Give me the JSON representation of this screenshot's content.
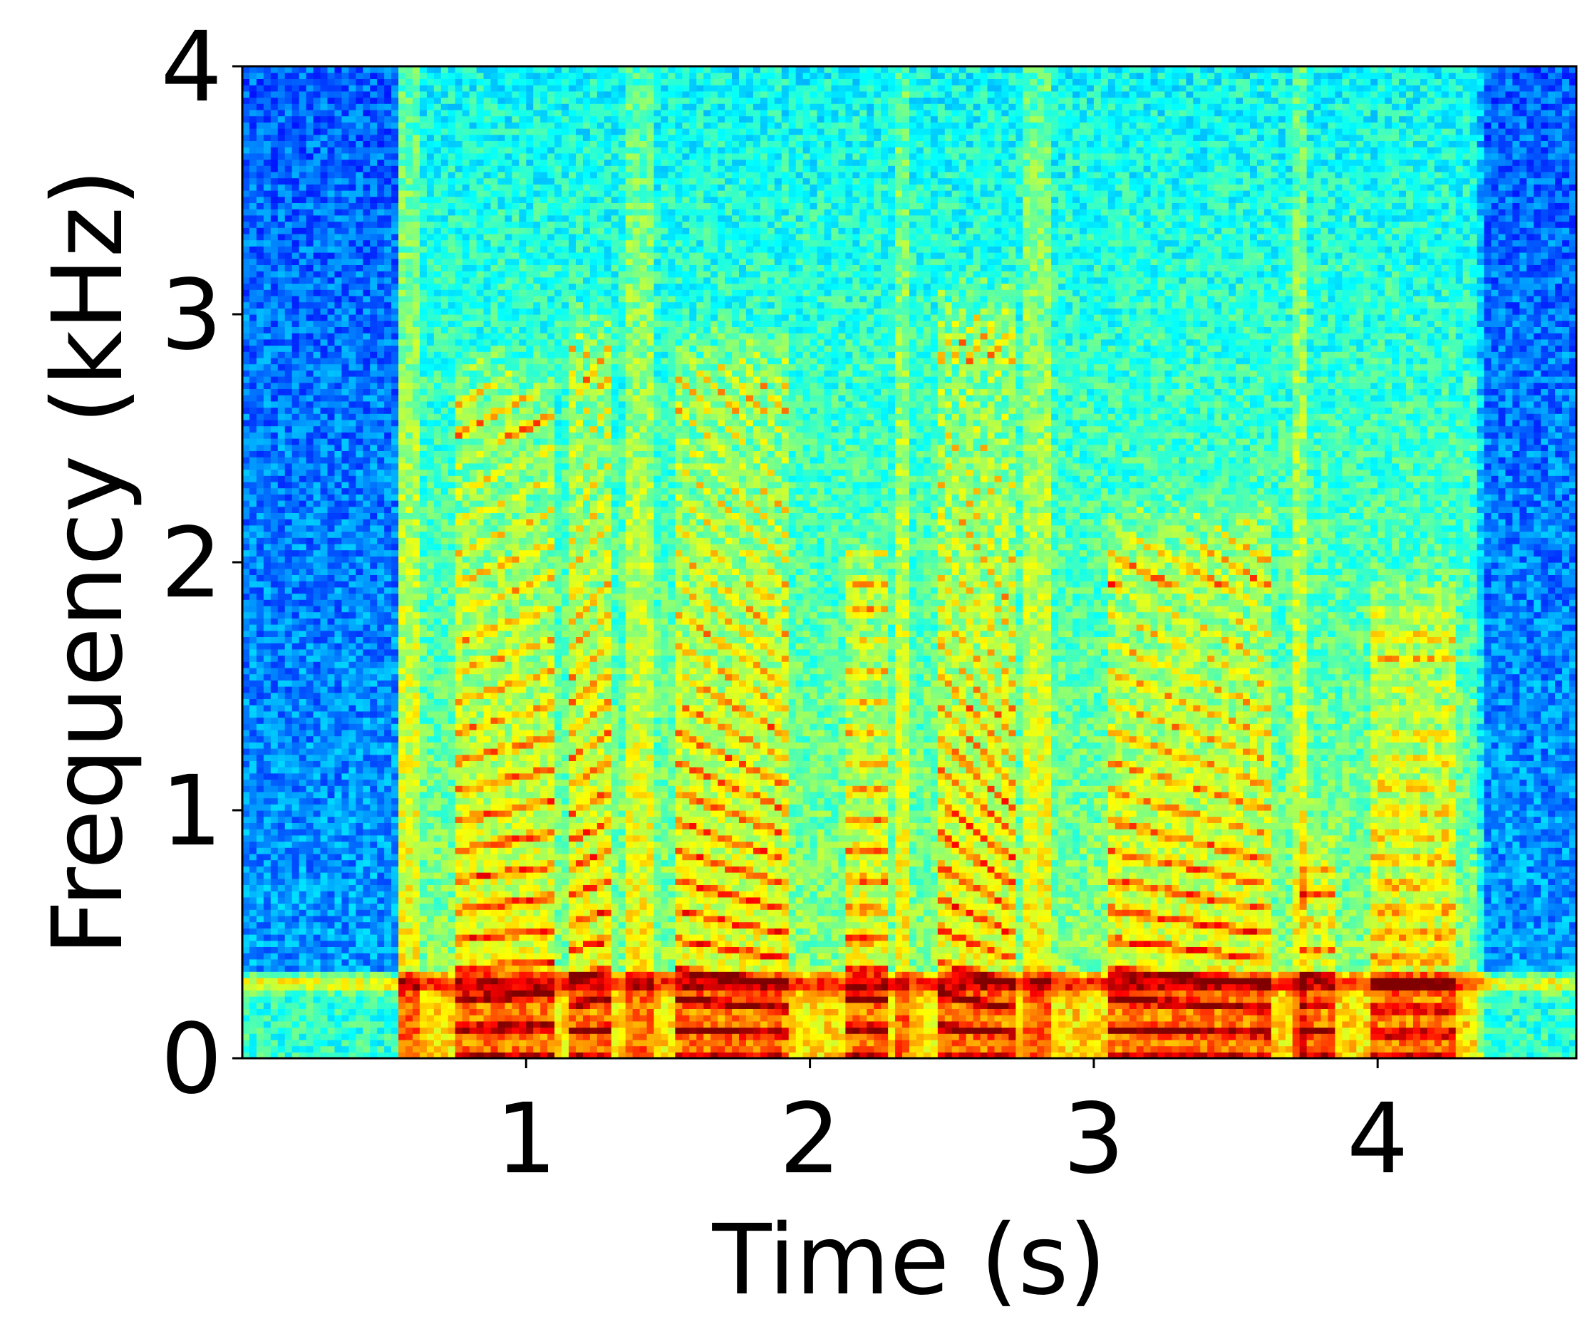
{
  "chart_data": {
    "type": "heatmap",
    "title": "",
    "xlabel": "Time (s)",
    "ylabel": "Frequency (kHz)",
    "xlim": [
      0,
      4.7
    ],
    "ylim": [
      0,
      4
    ],
    "xticks": [
      1,
      2,
      3,
      4
    ],
    "xtick_labels": [
      "1",
      "2",
      "3",
      "4"
    ],
    "yticks": [
      0,
      1,
      2,
      3,
      4
    ],
    "ytick_labels": [
      "0",
      "1",
      "2",
      "3",
      "4"
    ],
    "colormap": "jet",
    "value_range_db": [
      -80,
      0
    ],
    "grid": false,
    "legend": "none",
    "background_hum_khz": 0.3,
    "voiced_segments": [
      {
        "t_start": 0.76,
        "t_end": 1.1,
        "f0_khz": 0.12,
        "f0_end_khz": 0.13,
        "max_khz": 2.5
      },
      {
        "t_start": 1.16,
        "t_end": 1.3,
        "f0_khz": 0.11,
        "f0_end_khz": 0.12,
        "max_khz": 2.7
      },
      {
        "t_start": 1.52,
        "t_end": 1.92,
        "f0_khz": 0.12,
        "f0_end_khz": 0.1,
        "max_khz": 2.6
      },
      {
        "t_start": 2.12,
        "t_end": 2.28,
        "f0_khz": 0.12,
        "f0_end_khz": 0.12,
        "max_khz": 1.8
      },
      {
        "t_start": 2.45,
        "t_end": 2.72,
        "f0_khz": 0.13,
        "f0_end_khz": 0.1,
        "max_khz": 2.8
      },
      {
        "t_start": 3.05,
        "t_end": 3.62,
        "f0_khz": 0.12,
        "f0_end_khz": 0.1,
        "max_khz": 1.9
      },
      {
        "t_start": 3.72,
        "t_end": 3.86,
        "f0_khz": 0.11,
        "f0_end_khz": 0.11,
        "max_khz": 0.6
      },
      {
        "t_start": 3.98,
        "t_end": 4.28,
        "f0_khz": 0.1,
        "f0_end_khz": 0.1,
        "max_khz": 1.6
      }
    ],
    "noise_bursts": [
      {
        "t_start": 0.56,
        "t_end": 0.62
      },
      {
        "t_start": 1.36,
        "t_end": 1.46
      },
      {
        "t_start": 2.3,
        "t_end": 2.36
      },
      {
        "t_start": 2.76,
        "t_end": 2.86
      },
      {
        "t_start": 3.7,
        "t_end": 3.75
      },
      {
        "t_start": 4.34,
        "t_end": 4.38
      }
    ]
  }
}
